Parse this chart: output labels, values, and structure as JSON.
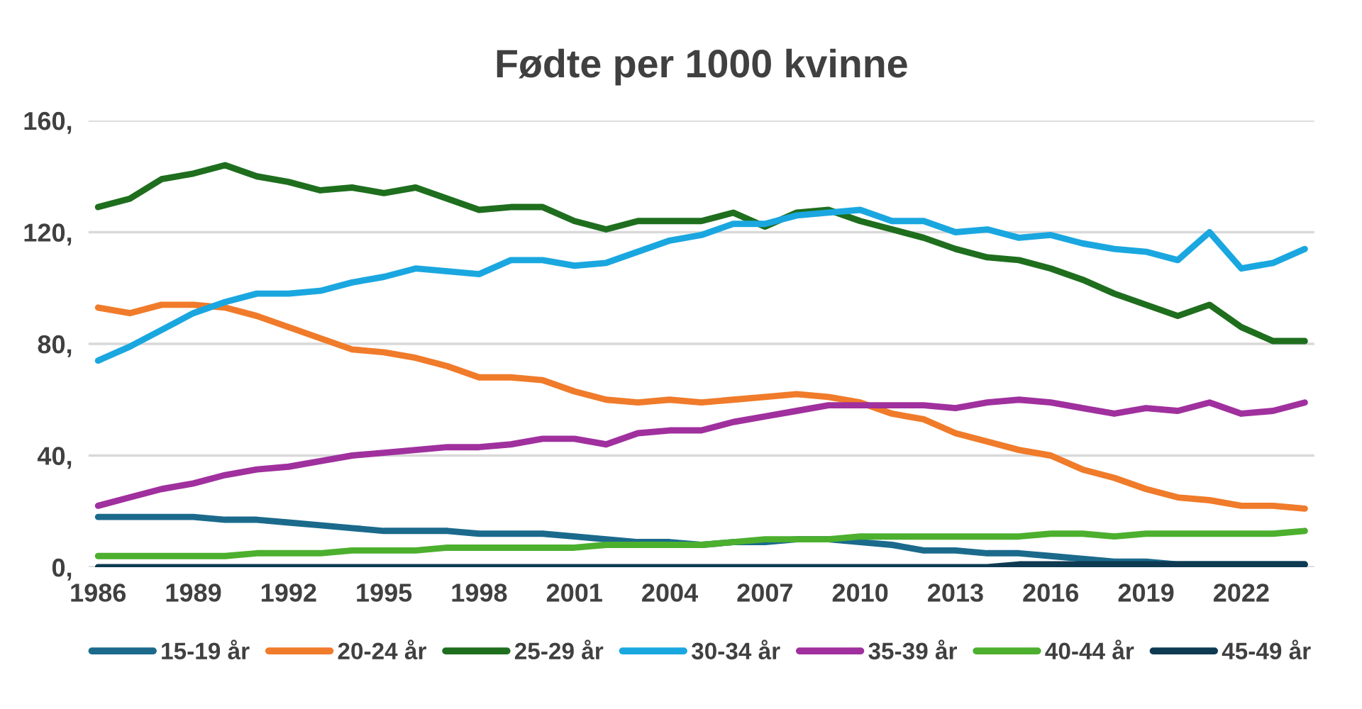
{
  "chart_data": {
    "type": "line",
    "title": "Fødte per 1000 kvinne",
    "categories": [
      "1986",
      null,
      null,
      "1989",
      null,
      null,
      "1992",
      null,
      null,
      "1995",
      null,
      null,
      "1998",
      null,
      null,
      "2001",
      null,
      null,
      "2004",
      null,
      null,
      "2007",
      null,
      null,
      "2010",
      null,
      null,
      "2013",
      null,
      null,
      "2016",
      null,
      null,
      "2019",
      null,
      null,
      "2022",
      null,
      null
    ],
    "series": [
      {
        "name": "15-19 år",
        "color": "#1b6a8c",
        "values": [
          18,
          18,
          18,
          18,
          17,
          17,
          16,
          15,
          14,
          13,
          13,
          13,
          12,
          12,
          12,
          11,
          10,
          9,
          9,
          8,
          9,
          9,
          10,
          10,
          9,
          8,
          6,
          6,
          5,
          5,
          4,
          3,
          2,
          2,
          1,
          1,
          1,
          1,
          1
        ]
      },
      {
        "name": "20-24 år",
        "color": "#f07b2a",
        "values": [
          93,
          91,
          94,
          94,
          93,
          90,
          86,
          82,
          78,
          77,
          75,
          72,
          68,
          68,
          67,
          63,
          60,
          59,
          60,
          59,
          60,
          61,
          62,
          61,
          59,
          55,
          53,
          48,
          45,
          42,
          40,
          35,
          32,
          28,
          25,
          24,
          22,
          22,
          21
        ]
      },
      {
        "name": "25-29 år",
        "color": "#1e6e1e",
        "values": [
          129,
          132,
          139,
          141,
          144,
          140,
          138,
          135,
          136,
          134,
          136,
          132,
          128,
          129,
          129,
          124,
          121,
          124,
          124,
          124,
          127,
          122,
          127,
          128,
          124,
          121,
          118,
          114,
          111,
          110,
          107,
          103,
          98,
          94,
          90,
          94,
          86,
          81,
          81
        ]
      },
      {
        "name": "30-34 år",
        "color": "#1aa7e0",
        "values": [
          74,
          79,
          85,
          91,
          95,
          98,
          98,
          99,
          102,
          104,
          107,
          106,
          105,
          110,
          110,
          108,
          109,
          113,
          117,
          119,
          123,
          123,
          126,
          127,
          128,
          124,
          124,
          120,
          121,
          118,
          119,
          116,
          114,
          113,
          110,
          120,
          107,
          109,
          114
        ]
      },
      {
        "name": "35-39 år",
        "color": "#a0309e",
        "values": [
          22,
          25,
          28,
          30,
          33,
          35,
          36,
          38,
          40,
          41,
          42,
          43,
          43,
          44,
          46,
          46,
          44,
          48,
          49,
          49,
          52,
          54,
          56,
          58,
          58,
          58,
          58,
          57,
          59,
          60,
          59,
          57,
          55,
          57,
          56,
          59,
          55,
          56,
          59
        ]
      },
      {
        "name": "40-44 år",
        "color": "#4caf2e",
        "values": [
          4,
          4,
          4,
          4,
          4,
          5,
          5,
          5,
          6,
          6,
          6,
          7,
          7,
          7,
          7,
          7,
          8,
          8,
          8,
          8,
          9,
          10,
          10,
          10,
          11,
          11,
          11,
          11,
          11,
          11,
          12,
          12,
          11,
          12,
          12,
          12,
          12,
          12,
          13
        ]
      },
      {
        "name": "45-49 år",
        "color": "#0e3a52",
        "values": [
          0,
          0,
          0,
          0,
          0,
          0,
          0,
          0,
          0,
          0,
          0,
          0,
          0,
          0,
          0,
          0,
          0,
          0,
          0,
          0,
          0,
          0,
          0,
          0,
          0,
          0,
          0,
          0,
          0,
          1,
          1,
          1,
          1,
          1,
          1,
          1,
          1,
          1,
          1
        ]
      }
    ],
    "ylim": [
      0,
      160
    ],
    "yticks": [
      {
        "value": 0,
        "label": "0,"
      },
      {
        "value": 40,
        "label": "40,"
      },
      {
        "value": 80,
        "label": "80,"
      },
      {
        "value": 120,
        "label": "120,"
      },
      {
        "value": 160,
        "label": "160,"
      }
    ],
    "grid": "y",
    "legend": "bottom",
    "marker": "none",
    "line_style": "solid"
  }
}
